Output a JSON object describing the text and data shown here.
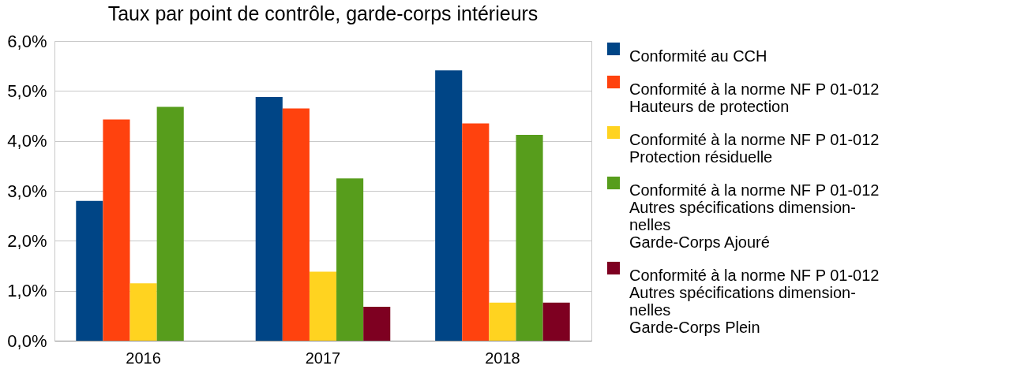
{
  "chart_data": {
    "type": "bar",
    "title": "Taux par point de contrôle, garde-corps intérieurs",
    "categories": [
      "2016",
      "2017",
      "2018"
    ],
    "series": [
      {
        "name": "Conformité au CCH",
        "color": "#004586",
        "values": [
          2.8,
          4.88,
          5.41
        ]
      },
      {
        "name": "Conformité à la norme NF P 01-012\nHauteurs de protection",
        "color": "#ff420e",
        "values": [
          4.43,
          4.65,
          4.35
        ]
      },
      {
        "name": "Conformité à la norme NF P 01-012\nProtection résiduelle",
        "color": "#ffd320",
        "values": [
          1.15,
          1.38,
          0.76
        ]
      },
      {
        "name": "Conformité à la norme NF P 01-012\nAutres spécifications dimension-\nnelles\nGarde-Corps Ajouré",
        "color": "#579d1c",
        "values": [
          4.68,
          3.25,
          4.12
        ]
      },
      {
        "name": "Conformité à la norme NF P 01-012\nAutres spécifications dimension-\nnelles\nGarde-Corps Plein",
        "color": "#7e0021",
        "values": [
          0,
          0.68,
          0.76
        ]
      }
    ],
    "ylim": [
      0,
      6
    ],
    "yticks": [
      {
        "value": 0,
        "label": "0,0%"
      },
      {
        "value": 1,
        "label": "1,0%"
      },
      {
        "value": 2,
        "label": "2,0%"
      },
      {
        "value": 3,
        "label": "3,0%"
      },
      {
        "value": 4,
        "label": "4,0%"
      },
      {
        "value": 5,
        "label": "5,0%"
      },
      {
        "value": 6,
        "label": "6,0%"
      }
    ],
    "grid": "y",
    "legend": "right"
  }
}
